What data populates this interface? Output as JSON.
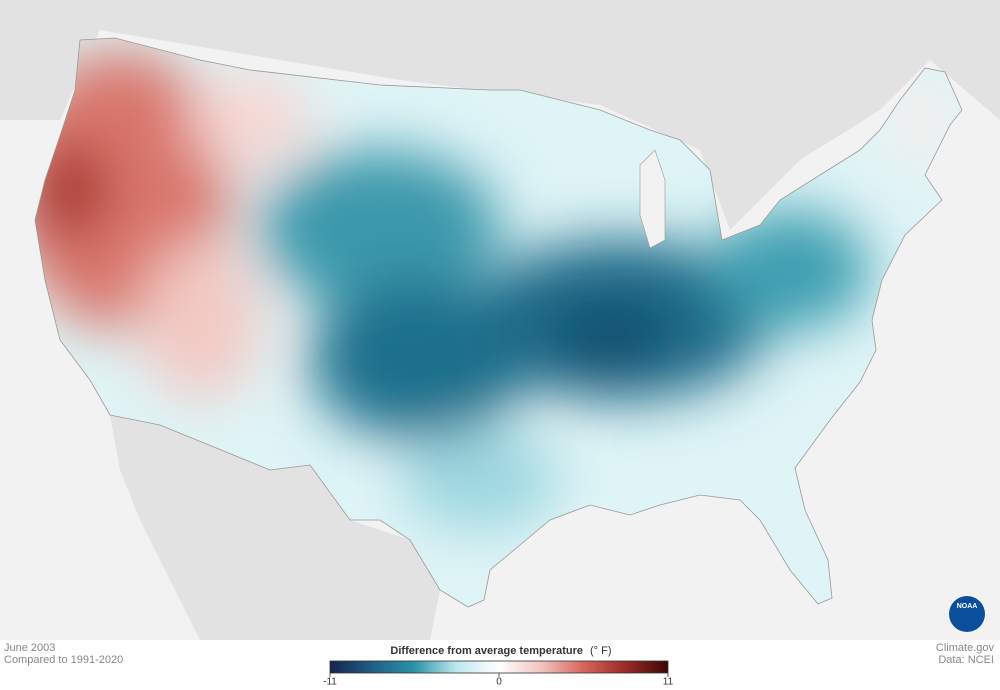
{
  "map": {
    "footer_left": {
      "title": "June 2003",
      "subtitle": "Compared to 1991-2020"
    },
    "footer_right": {
      "source": "Climate.gov",
      "data": "Data: NCEI"
    },
    "logo": "NOAA",
    "legend": {
      "title": "Difference from average temperature",
      "unit": "(° F)",
      "range": [
        -11,
        11
      ],
      "ticks": [
        -11,
        0,
        11
      ],
      "colors": [
        "#16244f",
        "#1f5f86",
        "#2a93a8",
        "#bfe9ee",
        "#ffffff",
        "#f2c4bd",
        "#d6655c",
        "#9a2a26",
        "#3e0606"
      ]
    }
  }
}
